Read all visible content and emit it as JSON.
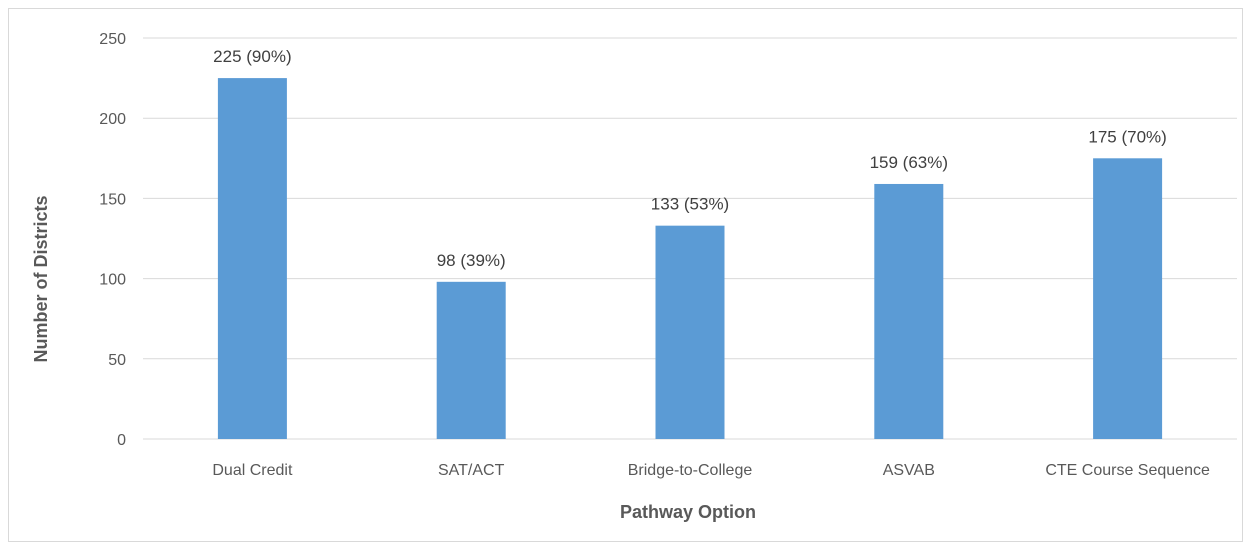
{
  "chart_data": {
    "type": "bar",
    "title": "",
    "xlabel": "Pathway Option",
    "ylabel": "Number of Districts",
    "categories": [
      "Dual Credit",
      "SAT/ACT",
      "Bridge-to-College",
      "ASVAB",
      "CTE Course Sequence"
    ],
    "series": [
      {
        "values": [
          225,
          98,
          133,
          159,
          175
        ],
        "labels": [
          "225 (90%)",
          "98 (39%)",
          "133 (53%)",
          "159 (63%)",
          "175 (70%)"
        ],
        "color": "#5b9bd5"
      }
    ],
    "ylim": [
      0,
      250
    ],
    "yticks": [
      0,
      50,
      100,
      150,
      200,
      250
    ],
    "grid": true,
    "legend": "none",
    "gridline_color": "#d9d9d9"
  }
}
